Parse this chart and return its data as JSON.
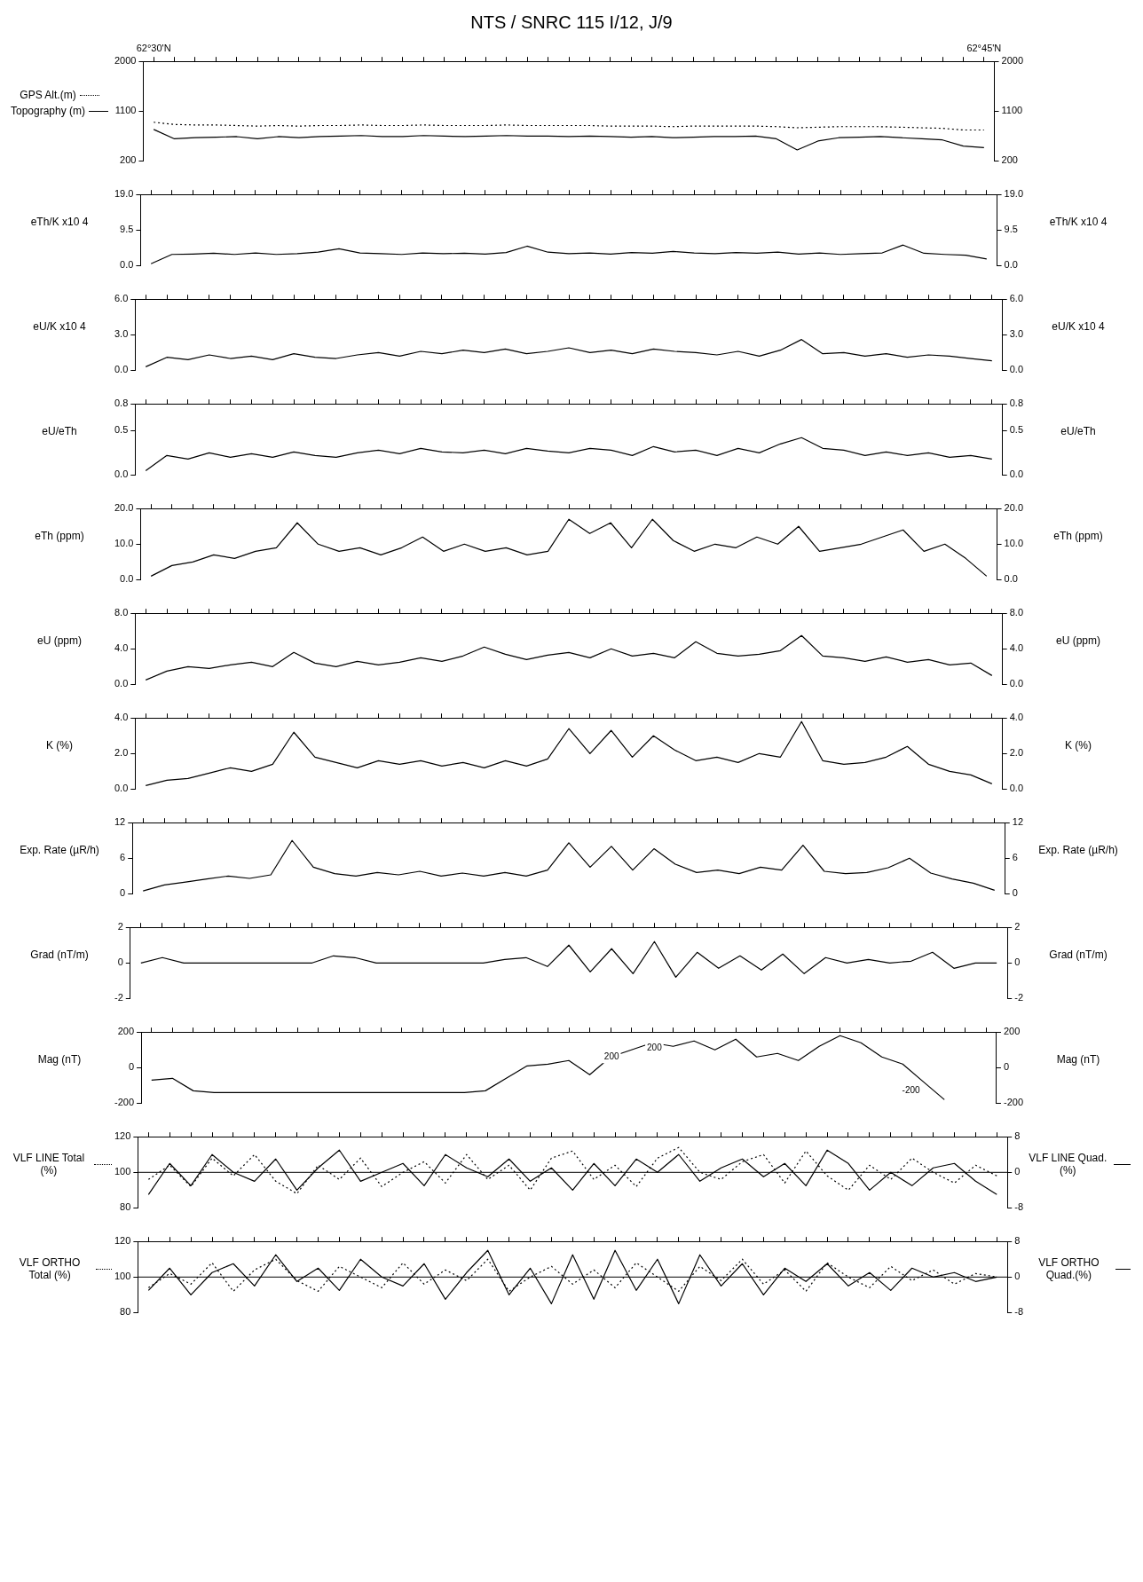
{
  "chart_data": [
    {
      "type": "line",
      "title": "NTS / SNRC 115 I/12, J/9",
      "categories": [
        "62°30'N",
        null,
        null,
        null,
        null,
        null,
        null,
        null,
        null,
        null,
        null,
        null,
        null,
        null,
        null,
        null,
        null,
        null,
        null,
        null,
        null,
        null,
        null,
        null,
        null,
        null,
        null,
        null,
        null,
        null,
        null,
        null,
        null,
        null,
        null,
        null,
        null,
        null,
        null,
        null,
        "62°45'N"
      ],
      "ylim": [
        200,
        2000
      ],
      "yticks": [
        200,
        1100,
        2000
      ],
      "y2lim": [
        200,
        2000
      ],
      "y2ticks": [
        200,
        1100,
        2000
      ],
      "legend": "left",
      "series": [
        {
          "name": "GPS Alt.(m)",
          "color": "#000000",
          "line_style": "dotted",
          "values": [
            900,
            860,
            850,
            850,
            840,
            830,
            840,
            830,
            840,
            840,
            850,
            840,
            840,
            850,
            840,
            840,
            840,
            850,
            840,
            840,
            840,
            840,
            830,
            830,
            830,
            820,
            830,
            830,
            830,
            830,
            820,
            800,
            810,
            820,
            820,
            820,
            810,
            800,
            790,
            760,
            760
          ]
        },
        {
          "name": "Topography (m)",
          "color": "#000000",
          "line_style": "solid",
          "values": [
            770,
            600,
            620,
            630,
            640,
            600,
            640,
            620,
            640,
            650,
            660,
            640,
            640,
            660,
            650,
            640,
            650,
            660,
            650,
            650,
            640,
            650,
            640,
            630,
            640,
            620,
            630,
            640,
            640,
            650,
            600,
            400,
            560,
            620,
            630,
            640,
            620,
            600,
            580,
            470,
            440
          ]
        }
      ]
    },
    {
      "type": "line",
      "categories": [
        null,
        null,
        null,
        null,
        null,
        null,
        null,
        null,
        null,
        null,
        null,
        null,
        null,
        null,
        null,
        null,
        null,
        null,
        null,
        null,
        null,
        null,
        null,
        null,
        null,
        null,
        null,
        null,
        null,
        null,
        null,
        null,
        null,
        null,
        null,
        null,
        null,
        null,
        null,
        null,
        null
      ],
      "tick_labels": "y",
      "ylabel": "eTh/K x10 4",
      "y2label": "eTh/K x10 4",
      "ylim": [
        0,
        19
      ],
      "yticks": [
        {
          "value": 0,
          "label": "0.0"
        },
        {
          "value": 9.5,
          "label": "9.5"
        },
        {
          "value": 19,
          "label": "19.0"
        }
      ],
      "y2lim": [
        0,
        19
      ],
      "y2ticks": [
        {
          "value": 0,
          "label": "0.0"
        },
        {
          "value": 9.5,
          "label": "9.5"
        },
        {
          "value": 19,
          "label": "19.0"
        }
      ],
      "series": [
        {
          "color": "#000000",
          "values": [
            0.5,
            3.0,
            3.1,
            3.3,
            3.0,
            3.4,
            3.0,
            3.2,
            3.6,
            4.5,
            3.4,
            3.2,
            3.0,
            3.4,
            3.2,
            3.3,
            3.1,
            3.5,
            5.2,
            3.6,
            3.2,
            3.4,
            3.1,
            3.5,
            3.3,
            3.8,
            3.4,
            3.2,
            3.5,
            3.3,
            3.6,
            3.1,
            3.4,
            3.0,
            3.2,
            3.4,
            5.5,
            3.3,
            3.0,
            2.8,
            1.8
          ]
        }
      ]
    },
    {
      "type": "line",
      "categories": [
        null,
        null,
        null,
        null,
        null,
        null,
        null,
        null,
        null,
        null,
        null,
        null,
        null,
        null,
        null,
        null,
        null,
        null,
        null,
        null,
        null,
        null,
        null,
        null,
        null,
        null,
        null,
        null,
        null,
        null,
        null,
        null,
        null,
        null,
        null,
        null,
        null,
        null,
        null,
        null,
        null
      ],
      "tick_labels": "y",
      "ylabel": "eU/K x10 4",
      "y2label": "eU/K x10 4",
      "ylim": [
        0,
        6
      ],
      "yticks": [
        {
          "value": 0,
          "label": "0.0"
        },
        {
          "value": 3,
          "label": "3.0"
        },
        {
          "value": 6,
          "label": "6.0"
        }
      ],
      "y2lim": [
        0,
        6
      ],
      "y2ticks": [
        {
          "value": 0,
          "label": "0.0"
        },
        {
          "value": 3,
          "label": "3.0"
        },
        {
          "value": 6,
          "label": "6.0"
        }
      ],
      "series": [
        {
          "color": "#000000",
          "values": [
            0.3,
            1.1,
            0.9,
            1.3,
            1.0,
            1.2,
            0.9,
            1.4,
            1.1,
            1.0,
            1.3,
            1.5,
            1.2,
            1.6,
            1.4,
            1.7,
            1.5,
            1.8,
            1.4,
            1.6,
            1.9,
            1.5,
            1.7,
            1.4,
            1.8,
            1.6,
            1.5,
            1.3,
            1.6,
            1.2,
            1.7,
            2.6,
            1.4,
            1.5,
            1.2,
            1.4,
            1.1,
            1.3,
            1.2,
            1.0,
            0.8
          ]
        }
      ]
    },
    {
      "type": "line",
      "categories": [
        null,
        null,
        null,
        null,
        null,
        null,
        null,
        null,
        null,
        null,
        null,
        null,
        null,
        null,
        null,
        null,
        null,
        null,
        null,
        null,
        null,
        null,
        null,
        null,
        null,
        null,
        null,
        null,
        null,
        null,
        null,
        null,
        null,
        null,
        null,
        null,
        null,
        null,
        null,
        null,
        null
      ],
      "tick_labels": "y",
      "ylabel": "eU/eTh",
      "y2label": "eU/eTh",
      "ylim": [
        0,
        0.8
      ],
      "yticks": [
        {
          "value": 0,
          "label": "0.0"
        },
        0.5,
        0.8
      ],
      "y2lim": [
        0,
        0.8
      ],
      "y2ticks": [
        {
          "value": 0,
          "label": "0.0"
        },
        0.5,
        0.8
      ],
      "series": [
        {
          "color": "#000000",
          "values": [
            0.05,
            0.22,
            0.18,
            0.25,
            0.2,
            0.24,
            0.2,
            0.26,
            0.22,
            0.2,
            0.25,
            0.28,
            0.24,
            0.3,
            0.26,
            0.25,
            0.28,
            0.24,
            0.3,
            0.27,
            0.25,
            0.3,
            0.28,
            0.22,
            0.32,
            0.26,
            0.28,
            0.22,
            0.3,
            0.25,
            0.35,
            0.42,
            0.3,
            0.28,
            0.22,
            0.26,
            0.22,
            0.25,
            0.2,
            0.22,
            0.18
          ]
        }
      ]
    },
    {
      "type": "line",
      "categories": [
        null,
        null,
        null,
        null,
        null,
        null,
        null,
        null,
        null,
        null,
        null,
        null,
        null,
        null,
        null,
        null,
        null,
        null,
        null,
        null,
        null,
        null,
        null,
        null,
        null,
        null,
        null,
        null,
        null,
        null,
        null,
        null,
        null,
        null,
        null,
        null,
        null,
        null,
        null,
        null,
        null
      ],
      "tick_labels": "y",
      "ylabel": "eTh (ppm)",
      "y2label": "eTh (ppm)",
      "ylim": [
        0,
        20
      ],
      "yticks": [
        {
          "value": 0,
          "label": "0.0"
        },
        {
          "value": 10,
          "label": "10.0"
        },
        {
          "value": 20,
          "label": "20.0"
        }
      ],
      "y2lim": [
        0,
        20
      ],
      "y2ticks": [
        {
          "value": 0,
          "label": "0.0"
        },
        {
          "value": 10,
          "label": "10.0"
        },
        {
          "value": 20,
          "label": "20.0"
        }
      ],
      "series": [
        {
          "color": "#000000",
          "values": [
            1,
            4,
            5,
            7,
            6,
            8,
            9,
            16,
            10,
            8,
            9,
            7,
            9,
            12,
            8,
            10,
            8,
            9,
            7,
            8,
            17,
            13,
            16,
            9,
            17,
            11,
            8,
            10,
            9,
            12,
            10,
            15,
            8,
            9,
            10,
            12,
            14,
            8,
            10,
            6,
            1
          ]
        }
      ]
    },
    {
      "type": "line",
      "categories": [
        null,
        null,
        null,
        null,
        null,
        null,
        null,
        null,
        null,
        null,
        null,
        null,
        null,
        null,
        null,
        null,
        null,
        null,
        null,
        null,
        null,
        null,
        null,
        null,
        null,
        null,
        null,
        null,
        null,
        null,
        null,
        null,
        null,
        null,
        null,
        null,
        null,
        null,
        null,
        null,
        null
      ],
      "tick_labels": "y",
      "ylabel": "eU (ppm)",
      "y2label": "eU (ppm)",
      "ylim": [
        0,
        8
      ],
      "yticks": [
        {
          "value": 0,
          "label": "0.0"
        },
        {
          "value": 4,
          "label": "4.0"
        },
        {
          "value": 8,
          "label": "8.0"
        }
      ],
      "y2lim": [
        0,
        8
      ],
      "y2ticks": [
        {
          "value": 0,
          "label": "0.0"
        },
        {
          "value": 4,
          "label": "4.0"
        },
        {
          "value": 8,
          "label": "8.0"
        }
      ],
      "series": [
        {
          "color": "#000000",
          "values": [
            0.5,
            1.5,
            2.0,
            1.8,
            2.2,
            2.5,
            2.0,
            3.6,
            2.4,
            2.0,
            2.6,
            2.2,
            2.5,
            3.0,
            2.6,
            3.2,
            4.2,
            3.4,
            2.8,
            3.3,
            3.6,
            3.0,
            4.0,
            3.2,
            3.5,
            3.0,
            4.8,
            3.5,
            3.2,
            3.4,
            3.8,
            5.5,
            3.2,
            3.0,
            2.6,
            3.1,
            2.5,
            2.8,
            2.2,
            2.4,
            1.0
          ]
        }
      ]
    },
    {
      "type": "line",
      "categories": [
        null,
        null,
        null,
        null,
        null,
        null,
        null,
        null,
        null,
        null,
        null,
        null,
        null,
        null,
        null,
        null,
        null,
        null,
        null,
        null,
        null,
        null,
        null,
        null,
        null,
        null,
        null,
        null,
        null,
        null,
        null,
        null,
        null,
        null,
        null,
        null,
        null,
        null,
        null,
        null,
        null
      ],
      "tick_labels": "y",
      "ylabel": "K (%)",
      "y2label": "K (%)",
      "ylim": [
        0,
        4
      ],
      "yticks": [
        {
          "value": 0,
          "label": "0.0"
        },
        {
          "value": 2,
          "label": "2.0"
        },
        {
          "value": 4,
          "label": "4.0"
        }
      ],
      "y2lim": [
        0,
        4
      ],
      "y2ticks": [
        {
          "value": 0,
          "label": "0.0"
        },
        {
          "value": 2,
          "label": "2.0"
        },
        {
          "value": 4,
          "label": "4.0"
        }
      ],
      "series": [
        {
          "color": "#000000",
          "values": [
            0.2,
            0.5,
            0.6,
            0.9,
            1.2,
            1.0,
            1.4,
            3.2,
            1.8,
            1.5,
            1.2,
            1.6,
            1.4,
            1.6,
            1.3,
            1.5,
            1.2,
            1.6,
            1.3,
            1.7,
            3.4,
            2.0,
            3.3,
            1.8,
            3.0,
            2.2,
            1.6,
            1.8,
            1.5,
            2.0,
            1.8,
            3.8,
            1.6,
            1.4,
            1.5,
            1.8,
            2.4,
            1.4,
            1.0,
            0.8,
            0.3
          ]
        }
      ]
    },
    {
      "type": "line",
      "categories": [
        null,
        null,
        null,
        null,
        null,
        null,
        null,
        null,
        null,
        null,
        null,
        null,
        null,
        null,
        null,
        null,
        null,
        null,
        null,
        null,
        null,
        null,
        null,
        null,
        null,
        null,
        null,
        null,
        null,
        null,
        null,
        null,
        null,
        null,
        null,
        null,
        null,
        null,
        null,
        null,
        null
      ],
      "tick_labels": "y",
      "ylabel": "Exp. Rate (µR/h)",
      "y2label": "Exp. Rate (µR/h)",
      "ylim": [
        0,
        12
      ],
      "yticks": [
        0,
        6,
        12
      ],
      "y2lim": [
        0,
        12
      ],
      "y2ticks": [
        0,
        6,
        12
      ],
      "series": [
        {
          "color": "#000000",
          "values": [
            0.5,
            1.5,
            2.0,
            2.5,
            3.0,
            2.6,
            3.2,
            9.0,
            4.5,
            3.4,
            3.0,
            3.6,
            3.2,
            3.8,
            3.0,
            3.5,
            3.0,
            3.6,
            3.0,
            4.0,
            8.6,
            4.5,
            8.0,
            4.0,
            7.6,
            5.0,
            3.6,
            4.0,
            3.4,
            4.5,
            4.0,
            8.2,
            3.8,
            3.4,
            3.6,
            4.4,
            6.0,
            3.5,
            2.5,
            1.8,
            0.6
          ]
        }
      ]
    },
    {
      "type": "line",
      "categories": [
        null,
        null,
        null,
        null,
        null,
        null,
        null,
        null,
        null,
        null,
        null,
        null,
        null,
        null,
        null,
        null,
        null,
        null,
        null,
        null,
        null,
        null,
        null,
        null,
        null,
        null,
        null,
        null,
        null,
        null,
        null,
        null,
        null,
        null,
        null,
        null,
        null,
        null,
        null,
        null,
        null
      ],
      "tick_labels": "y",
      "ylabel": "Grad (nT/m)",
      "y2label": "Grad (nT/m)",
      "ylim": [
        -2,
        2
      ],
      "yticks": [
        -2,
        0,
        2
      ],
      "y2lim": [
        -2,
        2
      ],
      "y2ticks": [
        -2,
        0,
        2
      ],
      "series": [
        {
          "color": "#000000",
          "values": [
            0,
            0.3,
            0,
            0,
            0,
            0,
            0,
            0,
            0,
            0.4,
            0.3,
            0,
            0,
            0,
            0,
            0,
            0,
            0.2,
            0.3,
            -0.2,
            1.0,
            -0.5,
            0.8,
            -0.6,
            1.2,
            -0.8,
            0.6,
            -0.3,
            0.4,
            -0.4,
            0.5,
            -0.6,
            0.3,
            0,
            0.2,
            0,
            0.1,
            0.6,
            -0.3,
            0,
            0
          ]
        }
      ]
    },
    {
      "type": "line",
      "categories": [
        null,
        null,
        null,
        null,
        null,
        null,
        null,
        null,
        null,
        null,
        null,
        null,
        null,
        null,
        null,
        null,
        null,
        null,
        null,
        null,
        null,
        null,
        null,
        null,
        null,
        null,
        null,
        null,
        null,
        null,
        null,
        null,
        null,
        null,
        null,
        null,
        null,
        null,
        null,
        null,
        null
      ],
      "tick_labels": "y",
      "ylabel": "Mag (nT)",
      "y2label": "Mag (nT)",
      "ylim": [
        -200,
        200
      ],
      "yticks": [
        -200,
        0,
        200
      ],
      "y2lim": [
        -200,
        200
      ],
      "y2ticks": [
        -200,
        0,
        200
      ],
      "annotations": [
        "200",
        "200",
        "-200"
      ],
      "series": [
        {
          "color": "#000000",
          "values": [
            -70,
            -60,
            -130,
            -140,
            -140,
            -140,
            -140,
            -140,
            -140,
            -140,
            -140,
            -140,
            -140,
            -140,
            -140,
            -140,
            -130,
            -60,
            10,
            20,
            40,
            -40,
            60,
            100,
            140,
            120,
            150,
            100,
            160,
            60,
            80,
            40,
            120,
            180,
            140,
            60,
            20,
            -80,
            -180,
            null,
            null
          ]
        }
      ]
    },
    {
      "type": "line",
      "categories": [
        null,
        null,
        null,
        null,
        null,
        null,
        null,
        null,
        null,
        null,
        null,
        null,
        null,
        null,
        null,
        null,
        null,
        null,
        null,
        null,
        null,
        null,
        null,
        null,
        null,
        null,
        null,
        null,
        null,
        null,
        null,
        null,
        null,
        null,
        null,
        null,
        null,
        null,
        null,
        null,
        null
      ],
      "tick_labels": "y",
      "ylim": [
        80,
        120
      ],
      "yticks": [
        80,
        100,
        120
      ],
      "y2lim": [
        -8,
        8
      ],
      "y2ticks": [
        -8,
        0,
        8
      ],
      "legend": "left",
      "ref_lines": [
        {
          "axis": "y",
          "value": 100,
          "color": "#000000"
        }
      ],
      "series": [
        {
          "name": "VLF LINE Total (%)",
          "color": "#000000",
          "line_style": "dotted",
          "values": [
            96,
            104,
            92,
            108,
            98,
            110,
            95,
            88,
            104,
            96,
            108,
            92,
            100,
            106,
            94,
            110,
            96,
            104,
            90,
            108,
            112,
            96,
            104,
            92,
            108,
            114,
            100,
            96,
            106,
            110,
            94,
            112,
            98,
            90,
            104,
            96,
            108,
            100,
            94,
            104,
            98
          ]
        },
        {
          "name": "VLF LINE Quad.(%)",
          "color": "#000000",
          "line_style": "solid",
          "axis": "y2",
          "values": [
            -5,
            2,
            -3,
            4,
            0,
            -2,
            3,
            -4,
            1,
            5,
            -2,
            0,
            2,
            -3,
            4,
            1,
            -1,
            3,
            -2,
            1,
            -4,
            2,
            -3,
            3,
            0,
            4,
            -2,
            1,
            3,
            -1,
            2,
            -3,
            5,
            2,
            -4,
            0,
            -3,
            1,
            2,
            -2,
            -5
          ]
        }
      ]
    },
    {
      "type": "line",
      "categories": [
        null,
        null,
        null,
        null,
        null,
        null,
        null,
        null,
        null,
        null,
        null,
        null,
        null,
        null,
        null,
        null,
        null,
        null,
        null,
        null,
        null,
        null,
        null,
        null,
        null,
        null,
        null,
        null,
        null,
        null,
        null,
        null,
        null,
        null,
        null,
        null,
        null,
        null,
        null,
        null,
        null
      ],
      "tick_labels": "y",
      "ylim": [
        80,
        120
      ],
      "yticks": [
        80,
        100,
        120
      ],
      "y2lim": [
        -8,
        8
      ],
      "y2ticks": [
        -8,
        0,
        8
      ],
      "legend": "left",
      "ref_lines": [
        {
          "axis": "y",
          "value": 100,
          "color": "#000000"
        }
      ],
      "series": [
        {
          "name": "VLF ORTHO Total (%)",
          "color": "#000000",
          "line_style": "dotted",
          "values": [
            94,
            102,
            96,
            108,
            92,
            104,
            110,
            98,
            92,
            106,
            100,
            94,
            108,
            96,
            104,
            98,
            110,
            92,
            100,
            106,
            96,
            104,
            94,
            108,
            100,
            92,
            106,
            98,
            110,
            96,
            104,
            92,
            108,
            100,
            94,
            106,
            98,
            104,
            96,
            102,
            100
          ]
        },
        {
          "name": "VLF ORTHO Quad.(%)",
          "color": "#000000",
          "line_style": "solid",
          "axis": "y2",
          "values": [
            -3,
            2,
            -4,
            1,
            3,
            -2,
            5,
            -1,
            2,
            -3,
            4,
            0,
            -2,
            3,
            -5,
            1,
            6,
            -4,
            2,
            -6,
            5,
            -5,
            6,
            -3,
            4,
            -6,
            5,
            -2,
            3,
            -4,
            2,
            -1,
            3,
            -2,
            1,
            -3,
            2,
            0,
            1,
            -1,
            0
          ]
        }
      ]
    }
  ]
}
